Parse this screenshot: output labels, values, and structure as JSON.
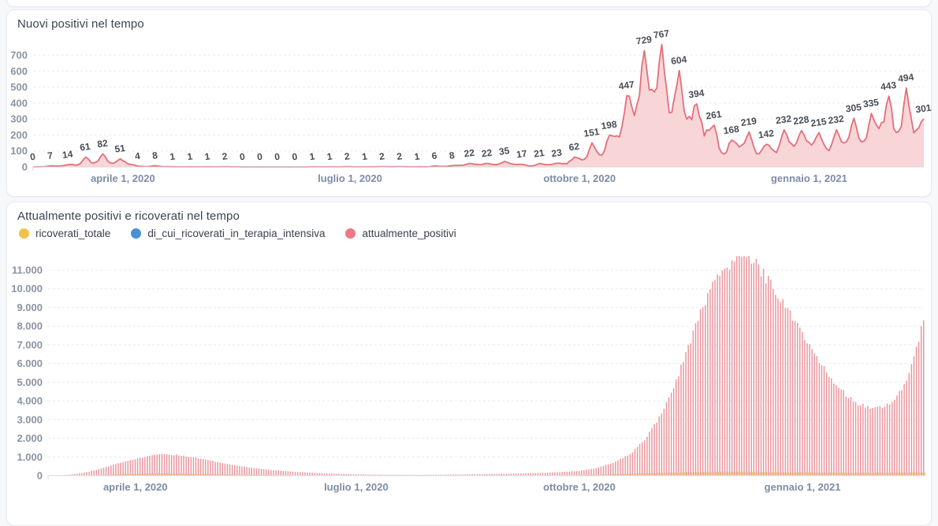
{
  "page": {
    "background": "#f7f8fa",
    "card_background": "#ffffff",
    "card_border": "#e8eaee"
  },
  "top_chart_card": {
    "title": "Nuovi positivi nel tempo"
  },
  "bottom_chart_card": {
    "title": "Attualmente positivi e ricoverati nel tempo",
    "legend": [
      {
        "label": "ricoverati_totale",
        "color": "#f2c04e"
      },
      {
        "label": "di_cui_ricoverati_in_terapia_intensiva",
        "color": "#4a90d9"
      },
      {
        "label": "attualmente_positivi",
        "color": "#ec7983"
      }
    ]
  },
  "chart_data": [
    {
      "type": "area",
      "title": "Nuovi positivi nel tempo",
      "y_ticks": [
        0,
        100,
        200,
        300,
        400,
        500,
        600,
        700
      ],
      "ylim": [
        0,
        790
      ],
      "x_tick_labels": [
        "aprile 1, 2020",
        "luglio 1, 2020",
        "ottobre 1, 2020",
        "gennaio 1, 2021"
      ],
      "x_tick_day_index": [
        36,
        127,
        219,
        311
      ],
      "sample_interval_days": 7,
      "values": [
        0,
        7,
        14,
        61,
        82,
        51,
        4,
        8,
        1,
        1,
        1,
        2,
        0,
        0,
        0,
        0,
        1,
        1,
        2,
        1,
        2,
        2,
        1,
        6,
        8,
        22,
        22,
        35,
        17,
        21,
        23,
        62,
        151,
        198,
        447,
        729,
        767,
        604,
        394,
        261,
        168,
        219,
        142,
        232,
        228,
        215,
        232,
        305,
        335,
        443,
        494,
        301
      ],
      "show_point_labels": true,
      "grid": "dashed horizontal",
      "line_color": "#e36f7b",
      "fill_color": "#f8d5d7",
      "label_color": "#474c54"
    },
    {
      "type": "bar",
      "title": "Attualmente positivi e ricoverati nel tempo",
      "y_ticks": [
        "0",
        "1.000",
        "2.000",
        "3.000",
        "4.000",
        "5.000",
        "6.000",
        "7.000",
        "8.000",
        "9.000",
        "10.000",
        "11.000"
      ],
      "y_tick_values": [
        0,
        1000,
        2000,
        3000,
        4000,
        5000,
        6000,
        7000,
        8000,
        9000,
        10000,
        11000
      ],
      "ylim": [
        0,
        11800
      ],
      "x_tick_labels": [
        "aprile 1, 2020",
        "luglio 1, 2020",
        "ottobre 1, 2020",
        "gennaio 1, 2021"
      ],
      "x_tick_day_index": [
        36,
        127,
        219,
        311
      ],
      "days_total": 361,
      "grid": "dashed horizontal",
      "legend_position": "top",
      "series": [
        {
          "name": "ricoverati_totale",
          "color": "#f2c04e",
          "anchors_day_value": [
            [
              0,
              0
            ],
            [
              12,
              10
            ],
            [
              20,
              35
            ],
            [
              28,
              70
            ],
            [
              36,
              95
            ],
            [
              43,
              115
            ],
            [
              50,
              112
            ],
            [
              58,
              98
            ],
            [
              66,
              80
            ],
            [
              75,
              62
            ],
            [
              85,
              45
            ],
            [
              95,
              32
            ],
            [
              108,
              20
            ],
            [
              120,
              12
            ],
            [
              132,
              8
            ],
            [
              145,
              6
            ],
            [
              158,
              6
            ],
            [
              170,
              7
            ],
            [
              182,
              9
            ],
            [
              194,
              13
            ],
            [
              205,
              20
            ],
            [
              214,
              28
            ],
            [
              222,
              42
            ],
            [
              230,
              65
            ],
            [
              238,
              95
            ],
            [
              246,
              125
            ],
            [
              254,
              150
            ],
            [
              262,
              172
            ],
            [
              270,
              190
            ],
            [
              278,
              198
            ],
            [
              286,
              196
            ],
            [
              294,
              188
            ],
            [
              302,
              178
            ],
            [
              310,
              168
            ],
            [
              318,
              158
            ],
            [
              326,
              152
            ],
            [
              334,
              150
            ],
            [
              342,
              152
            ],
            [
              350,
              158
            ],
            [
              356,
              164
            ],
            [
              361,
              170
            ]
          ]
        },
        {
          "name": "di_cui_ricoverati_in_terapia_intensiva",
          "color": "#4a90d9",
          "anchors_day_value": [
            [
              0,
              0
            ],
            [
              15,
              6
            ],
            [
              25,
              14
            ],
            [
              36,
              22
            ],
            [
              45,
              26
            ],
            [
              55,
              22
            ],
            [
              65,
              17
            ],
            [
              78,
              11
            ],
            [
              92,
              6
            ],
            [
              110,
              3
            ],
            [
              130,
              1
            ],
            [
              155,
              1
            ],
            [
              180,
              1
            ],
            [
              200,
              2
            ],
            [
              212,
              4
            ],
            [
              222,
              7
            ],
            [
              232,
              11
            ],
            [
              242,
              15
            ],
            [
              252,
              19
            ],
            [
              262,
              23
            ],
            [
              272,
              26
            ],
            [
              282,
              26
            ],
            [
              292,
              25
            ],
            [
              302,
              23
            ],
            [
              312,
              21
            ],
            [
              322,
              19
            ],
            [
              332,
              17
            ],
            [
              342,
              16
            ],
            [
              352,
              16
            ],
            [
              361,
              17
            ]
          ]
        },
        {
          "name": "attualmente_positivi",
          "color": "#e9969e",
          "anchors_day_value": [
            [
              0,
              0
            ],
            [
              8,
              40
            ],
            [
              15,
              150
            ],
            [
              22,
              380
            ],
            [
              29,
              650
            ],
            [
              36,
              880
            ],
            [
              42,
              1060
            ],
            [
              47,
              1150
            ],
            [
              53,
              1110
            ],
            [
              60,
              980
            ],
            [
              68,
              780
            ],
            [
              76,
              580
            ],
            [
              84,
              420
            ],
            [
              93,
              290
            ],
            [
              103,
              190
            ],
            [
              114,
              120
            ],
            [
              127,
              70
            ],
            [
              140,
              48
            ],
            [
              152,
              42
            ],
            [
              164,
              55
            ],
            [
              176,
              72
            ],
            [
              188,
              95
            ],
            [
              200,
              135
            ],
            [
              210,
              180
            ],
            [
              219,
              250
            ],
            [
              226,
              400
            ],
            [
              233,
              680
            ],
            [
              240,
              1150
            ],
            [
              246,
              1900
            ],
            [
              252,
              3100
            ],
            [
              258,
              4800
            ],
            [
              264,
              6800
            ],
            [
              269,
              8700
            ],
            [
              274,
              10400
            ],
            [
              279,
              11200
            ],
            [
              284,
              11500
            ],
            [
              288,
              11580
            ],
            [
              292,
              11300
            ],
            [
              296,
              10600
            ],
            [
              301,
              9700
            ],
            [
              306,
              8700
            ],
            [
              311,
              7600
            ],
            [
              316,
              6500
            ],
            [
              321,
              5500
            ],
            [
              326,
              4700
            ],
            [
              330,
              4200
            ],
            [
              334,
              3850
            ],
            [
              338,
              3650
            ],
            [
              342,
              3580
            ],
            [
              345,
              3700
            ],
            [
              348,
              3950
            ],
            [
              351,
              4400
            ],
            [
              354,
              5100
            ],
            [
              356,
              5800
            ],
            [
              358,
              6700
            ],
            [
              360,
              7800
            ],
            [
              361,
              8400
            ]
          ]
        }
      ]
    }
  ]
}
